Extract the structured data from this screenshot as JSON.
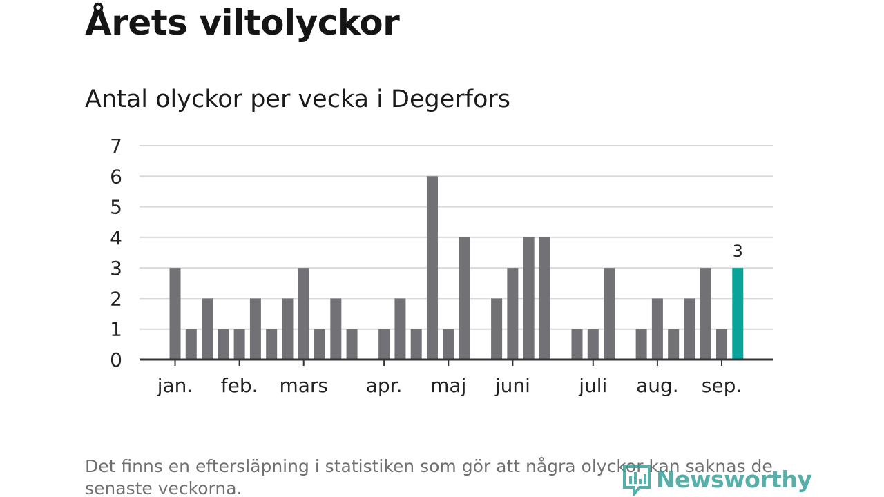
{
  "header": {
    "title": "Årets viltolyckor",
    "subtitle": "Antal olyckor per vecka i Degerfors"
  },
  "footnote": "Det finns en eftersläpning i statistiken som gör att några olyckor kan saknas de senaste veckorna.",
  "brand": {
    "name": "Newsworthy",
    "icon": "newsworthy-logo-icon",
    "color": "#2e9c94"
  },
  "colors": {
    "bar": "#727176",
    "highlight": "#0aa39a",
    "grid": "#d9d9d9",
    "axis": "#333333",
    "text": "#222222"
  },
  "chart_data": {
    "type": "bar",
    "title": "Antal olyckor per vecka i Degerfors",
    "xlabel": "",
    "ylabel": "",
    "ylim": [
      0,
      7
    ],
    "yticks": [
      "0",
      "1",
      "2",
      "3",
      "4",
      "5",
      "6",
      "7"
    ],
    "grid": true,
    "x": [
      1,
      2,
      3,
      4,
      5,
      6,
      7,
      8,
      9,
      10,
      11,
      12,
      13,
      14,
      15,
      16,
      17,
      18,
      19,
      20,
      21,
      22,
      23,
      24,
      25,
      26,
      27,
      28,
      29,
      30,
      31,
      32,
      33,
      34,
      35,
      36,
      37,
      38,
      39
    ],
    "values": [
      3,
      1,
      2,
      1,
      1,
      2,
      1,
      2,
      3,
      1,
      2,
      1,
      0,
      1,
      2,
      1,
      6,
      1,
      4,
      0,
      2,
      3,
      4,
      4,
      0,
      1,
      1,
      3,
      0,
      1,
      2,
      1,
      2,
      3,
      1,
      3,
      0,
      0,
      0
    ],
    "highlight_index": 35,
    "highlight_label": "3",
    "month_labels": [
      {
        "label": "jan.",
        "week": 1
      },
      {
        "label": "feb.",
        "week": 5
      },
      {
        "label": "mars",
        "week": 9
      },
      {
        "label": "apr.",
        "week": 14
      },
      {
        "label": "maj",
        "week": 18
      },
      {
        "label": "juni",
        "week": 22
      },
      {
        "label": "juli",
        "week": 27
      },
      {
        "label": "aug.",
        "week": 31
      },
      {
        "label": "sep.",
        "week": 35
      }
    ]
  }
}
